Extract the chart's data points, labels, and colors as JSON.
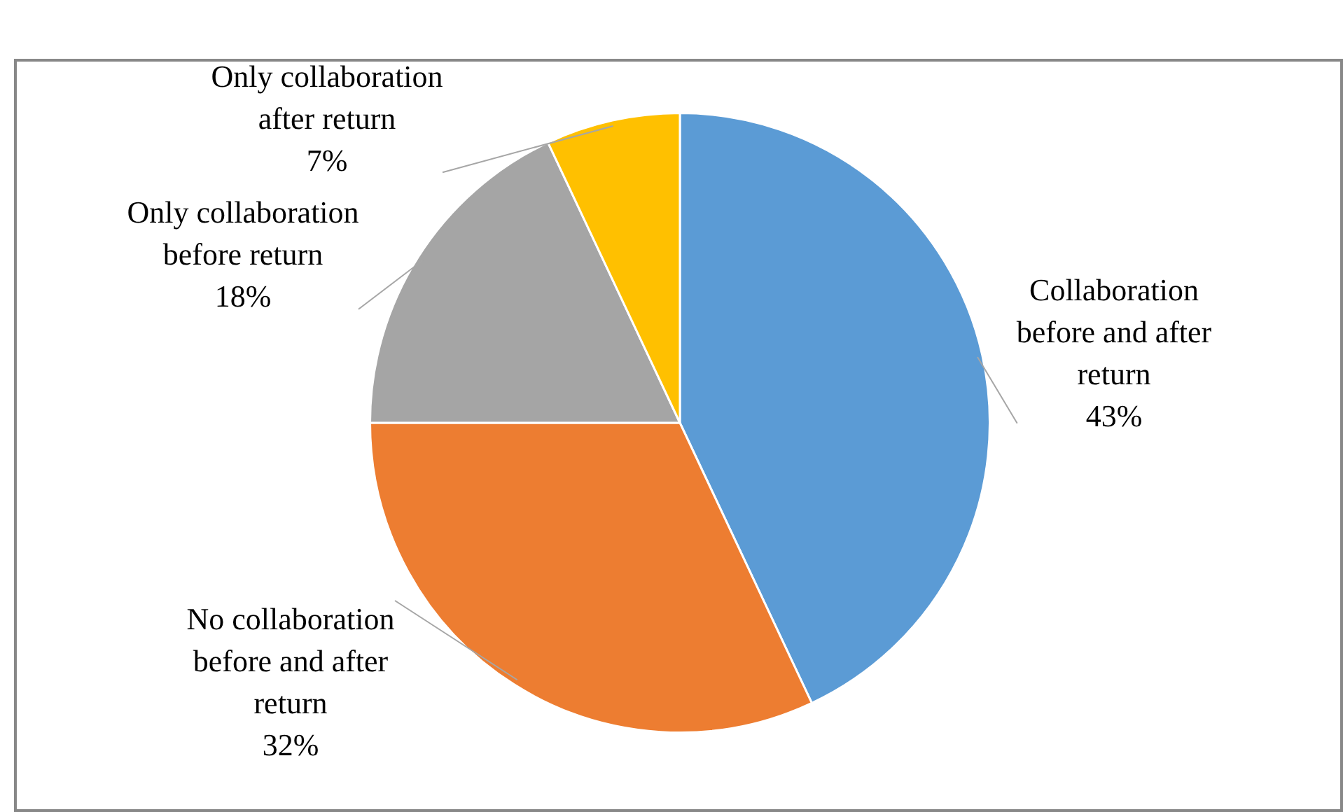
{
  "chart_data": {
    "type": "pie",
    "categories": [
      "Collaboration before and after return",
      "No collaboration before and after return",
      "Only collaboration before return",
      "Only collaboration after return"
    ],
    "values": [
      43,
      32,
      18,
      7
    ],
    "colors": [
      "#5b9bd5",
      "#ed7d31",
      "#a5a5a5",
      "#ffc000"
    ],
    "value_labels": [
      "43%",
      "32%",
      "18%",
      "7%"
    ],
    "legend": false
  }
}
